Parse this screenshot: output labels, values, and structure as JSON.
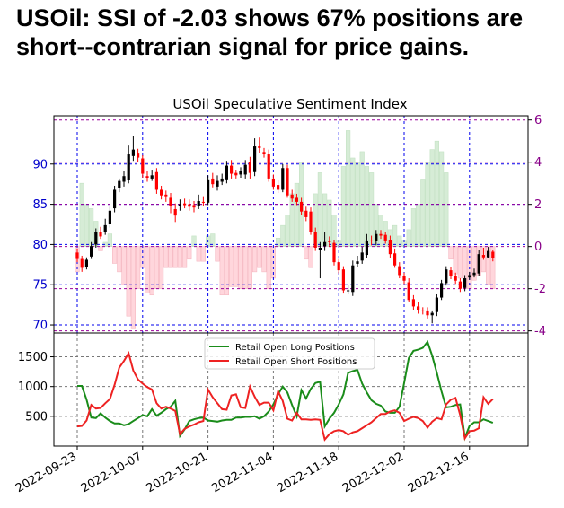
{
  "headline": "USOil: SSI of -2.03 shows 67% positions are short--contrarian signal for price gains.",
  "chart_data": {
    "type": "candlestick+bar+line",
    "title": "USOil Speculative Sentiment Index",
    "colors": {
      "up": "#000000",
      "down": "#ff0000",
      "ssi_pos": "#d6ecd6",
      "ssi_neg": "#ffd6dc",
      "long": "#1a8c1a",
      "short": "#ee2222",
      "price_axis": "#0000cc",
      "ssi_axis": "#880088"
    },
    "dates": [
      "2022-09-23",
      "2022-09-24",
      "2022-09-25",
      "2022-09-26",
      "2022-09-27",
      "2022-09-28",
      "2022-09-29",
      "2022-09-30",
      "2022-10-01",
      "2022-10-02",
      "2022-10-03",
      "2022-10-04",
      "2022-10-05",
      "2022-10-06",
      "2022-10-07",
      "2022-10-08",
      "2022-10-09",
      "2022-10-10",
      "2022-10-11",
      "2022-10-12",
      "2022-10-13",
      "2022-10-14",
      "2022-10-15",
      "2022-10-16",
      "2022-10-17",
      "2022-10-18",
      "2022-10-19",
      "2022-10-20",
      "2022-10-21",
      "2022-10-22",
      "2022-10-23",
      "2022-10-24",
      "2022-10-25",
      "2022-10-26",
      "2022-10-27",
      "2022-10-28",
      "2022-10-29",
      "2022-10-30",
      "2022-10-31",
      "2022-11-01",
      "2022-11-02",
      "2022-11-03",
      "2022-11-04",
      "2022-11-05",
      "2022-11-06",
      "2022-11-07",
      "2022-11-08",
      "2022-11-09",
      "2022-11-10",
      "2022-11-11",
      "2022-11-12",
      "2022-11-13",
      "2022-11-14",
      "2022-11-15",
      "2022-11-16",
      "2022-11-17",
      "2022-11-18",
      "2022-11-19",
      "2022-11-20",
      "2022-11-21",
      "2022-11-22",
      "2022-11-23",
      "2022-11-24",
      "2022-11-25",
      "2022-11-26",
      "2022-11-27",
      "2022-11-28",
      "2022-11-29",
      "2022-11-30",
      "2022-12-01",
      "2022-12-02",
      "2022-12-03",
      "2022-12-04",
      "2022-12-05",
      "2022-12-06",
      "2022-12-07",
      "2022-12-08",
      "2022-12-09",
      "2022-12-10",
      "2022-12-11",
      "2022-12-12",
      "2022-12-13",
      "2022-12-14",
      "2022-12-15",
      "2022-12-16",
      "2022-12-17",
      "2022-12-18",
      "2022-12-19",
      "2022-12-20",
      "2022-12-21",
      "2022-12-22",
      "2022-12-23",
      "2022-12-24",
      "2022-12-25",
      "2022-12-26",
      "2022-12-27"
    ],
    "candles": [
      [
        0,
        79,
        78.2,
        79.5,
        77.8
      ],
      [
        1,
        78.2,
        77.1,
        78.6,
        76.6
      ],
      [
        2,
        77.2,
        78.1,
        78.4,
        76.9
      ],
      [
        3,
        78.5,
        79.8,
        80.3,
        78.2
      ],
      [
        4,
        80,
        81.6,
        82,
        79.6
      ],
      [
        5,
        81.6,
        81,
        82.2,
        80.7
      ],
      [
        6,
        81.5,
        82.4,
        83.2,
        81.2
      ],
      [
        7,
        82.5,
        84.2,
        84.7,
        82.1
      ],
      [
        8,
        84.5,
        86.8,
        87.3,
        84
      ],
      [
        9,
        87,
        87.9,
        88.2,
        86.5
      ],
      [
        10,
        87.8,
        88.5,
        89.1,
        87.2
      ],
      [
        11,
        88,
        91.2,
        92.3,
        87.6
      ],
      [
        12,
        91,
        91.8,
        93.5,
        90.4
      ],
      [
        13,
        91.3,
        90.8,
        91.9,
        90.3
      ],
      [
        14,
        90.7,
        88.8,
        91.1,
        88.3
      ],
      [
        15,
        88.5,
        88.3,
        89.1,
        87.8
      ],
      [
        16,
        88.2,
        88.6,
        89.3,
        87.9
      ],
      [
        17,
        89,
        86.8,
        89.5,
        86.3
      ],
      [
        18,
        86.8,
        86.1,
        87.3,
        85.6
      ],
      [
        19,
        86.2,
        86,
        86.7,
        85.3
      ],
      [
        20,
        85.8,
        84.8,
        86.4,
        83.9
      ],
      [
        21,
        84.4,
        83.6,
        85.1,
        82.8
      ],
      [
        22,
        84.8,
        85,
        85.6,
        84.2
      ],
      [
        23,
        85.1,
        84.9,
        85.7,
        84.5
      ],
      [
        24,
        85,
        84.7,
        85.6,
        84.2
      ],
      [
        25,
        84.9,
        84.6,
        85.4,
        84
      ],
      [
        26,
        84.8,
        85.4,
        86.2,
        84.4
      ],
      [
        27,
        85.3,
        85.2,
        86,
        84.8
      ],
      [
        28,
        85.2,
        88.1,
        88.6,
        84.9
      ],
      [
        29,
        88.2,
        87.5,
        88.9,
        87.1
      ],
      [
        30,
        87.2,
        87.9,
        88.6,
        86.7
      ],
      [
        31,
        87.8,
        88.2,
        88.8,
        87.4
      ],
      [
        32,
        88.1,
        89.8,
        90.4,
        87.6
      ],
      [
        33,
        89.8,
        88.8,
        90.5,
        88.2
      ],
      [
        34,
        88.9,
        88.6,
        89.3,
        88.2
      ],
      [
        35,
        88.7,
        89.1,
        89.6,
        88.3
      ],
      [
        36,
        88.7,
        89.9,
        90.5,
        88.2
      ],
      [
        37,
        90.2,
        88.9,
        90.9,
        88.2
      ],
      [
        38,
        89,
        92.2,
        93.2,
        88.5
      ],
      [
        39,
        92.2,
        92,
        93.3,
        91.4
      ],
      [
        40,
        91.5,
        91.2,
        92,
        90.8
      ],
      [
        41,
        91.2,
        88.2,
        91.8,
        87.8
      ],
      [
        42,
        88.2,
        87.2,
        88.7,
        86.8
      ],
      [
        43,
        87.4,
        86.8,
        88,
        86.4
      ],
      [
        44,
        86.8,
        89.5,
        90,
        86.5
      ],
      [
        45,
        89.5,
        86.1,
        89.9,
        85.8
      ],
      [
        46,
        86.2,
        85.7,
        86.8,
        85.3
      ],
      [
        47,
        85.8,
        85.3,
        86.3,
        84.9
      ],
      [
        48,
        85.3,
        84.1,
        85.8,
        83.7
      ],
      [
        49,
        84.2,
        83.4,
        84.7,
        82.9
      ],
      [
        50,
        84.1,
        81.6,
        84.6,
        81.2
      ],
      [
        51,
        81.6,
        79.6,
        82.1,
        79.2
      ],
      [
        52,
        79.3,
        79.6,
        80.3,
        75.8
      ],
      [
        53,
        79.8,
        80.3,
        81.6,
        79.2
      ],
      [
        54,
        80.4,
        80.3,
        81,
        79.7
      ],
      [
        55,
        80.2,
        77.8,
        80.6,
        77.4
      ],
      [
        56,
        77.8,
        76.8,
        78.2,
        76.4
      ],
      [
        57,
        76.9,
        74.3,
        77.3,
        73.9
      ],
      [
        58,
        74.2,
        74.3,
        74.9,
        73.8
      ],
      [
        59,
        74.1,
        77.4,
        78,
        73.6
      ],
      [
        60,
        77.6,
        77.9,
        78.6,
        77.2
      ],
      [
        61,
        78,
        79,
        79.7,
        77.6
      ],
      [
        62,
        78.7,
        80.5,
        81.3,
        78.3
      ],
      [
        63,
        80.5,
        80.4,
        81.1,
        79.9
      ],
      [
        64,
        80.4,
        81.3,
        81.8,
        79.9
      ],
      [
        65,
        81.3,
        81.1,
        81.8,
        80.7
      ],
      [
        66,
        81.2,
        80.5,
        81.6,
        80.1
      ],
      [
        67,
        80.6,
        78.8,
        81.1,
        78.3
      ],
      [
        68,
        78.9,
        77.4,
        79.5,
        77.1
      ],
      [
        69,
        77.3,
        76.2,
        77.8,
        75.8
      ],
      [
        70,
        76.1,
        75.5,
        76.5,
        75.1
      ],
      [
        71,
        75.3,
        73.1,
        75.8,
        72.8
      ],
      [
        72,
        73.2,
        72.3,
        73.7,
        71.9
      ],
      [
        73,
        72.3,
        71.9,
        72.8,
        71.4
      ],
      [
        74,
        71.8,
        71.7,
        72.2,
        71.3
      ],
      [
        75,
        71.8,
        71.2,
        72.2,
        70.8
      ],
      [
        76,
        71.2,
        71.5,
        71.8,
        70.2
      ],
      [
        77,
        71.6,
        73.4,
        73.8,
        71.1
      ],
      [
        78,
        73.4,
        75.2,
        75.6,
        73.1
      ],
      [
        79,
        75.2,
        76.9,
        77.3,
        74.9
      ],
      [
        80,
        76.8,
        76.1,
        77.2,
        75.7
      ],
      [
        81,
        76.1,
        75.5,
        76.5,
        75.1
      ],
      [
        82,
        75.4,
        74.5,
        75.8,
        74.1
      ],
      [
        83,
        74.6,
        75.8,
        76.2,
        74.2
      ],
      [
        84,
        75.9,
        76.2,
        76.6,
        75.6
      ],
      [
        85,
        76.2,
        76.5,
        77,
        75.9
      ],
      [
        86,
        76.4,
        78.8,
        79.3,
        76.1
      ],
      [
        87,
        78.7,
        78.4,
        79.6,
        78.1
      ],
      [
        88,
        78.4,
        79.2,
        79.7,
        78.3
      ],
      [
        89,
        79.1,
        78.3,
        79.3,
        77.9
      ]
    ],
    "ssi": [
      -1.2,
      3.0,
      2.0,
      1.8,
      1.2,
      -0.2,
      0.2,
      0.6,
      -0.8,
      -1.2,
      -1.8,
      -3.3,
      -3.9,
      -2.0,
      -1.0,
      -2.2,
      -2.3,
      -2.0,
      -2.0,
      -1.0,
      -1.0,
      -1.0,
      -1.0,
      -1.0,
      -0.6,
      0.5,
      -0.7,
      -0.7,
      0.5,
      0.6,
      -0.7,
      -2.3,
      -2.3,
      -1.9,
      -1.9,
      -2.0,
      -2.0,
      -2.0,
      -1.2,
      -1.0,
      -1.2,
      -2.0,
      -1.5,
      0.4,
      1.0,
      1.5,
      2.5,
      3.0,
      4.0,
      -0.6,
      -1.0,
      2.5,
      3.5,
      2.5,
      2.2,
      1.5,
      0.3,
      3.8,
      5.5,
      4.2,
      4.0,
      4.5,
      3.8,
      3.5,
      2.0,
      1.5,
      1.2,
      0.8,
      1.0,
      0.5,
      0.3,
      0.8,
      1.8,
      2.0,
      3.2,
      4.0,
      4.6,
      5.0,
      4.5,
      3.5,
      -0.6,
      -1.3,
      -1.5,
      -2.0,
      -2.0,
      -1.6,
      -1.4,
      -1.2,
      -1.8,
      -2.0
    ],
    "long": [
      1010,
      1010,
      780,
      480,
      470,
      550,
      480,
      420,
      380,
      380,
      350,
      370,
      420,
      470,
      520,
      500,
      620,
      510,
      560,
      620,
      660,
      760,
      170,
      280,
      420,
      450,
      470,
      480,
      430,
      420,
      410,
      430,
      440,
      440,
      480,
      480,
      490,
      490,
      500,
      460,
      500,
      580,
      700,
      870,
      1000,
      900,
      690,
      500,
      940,
      800,
      960,
      1060,
      1080,
      330,
      460,
      560,
      700,
      870,
      1230,
      1260,
      1280,
      1050,
      900,
      770,
      710,
      680,
      580,
      560,
      560,
      660,
      1060,
      1480,
      1600,
      1620,
      1650,
      1750,
      1520,
      1230,
      920,
      650,
      660,
      690,
      700,
      140,
      340,
      400,
      400,
      450,
      420,
      390
    ],
    "short": [
      330,
      340,
      430,
      690,
      630,
      640,
      720,
      790,
      1030,
      1320,
      1430,
      1560,
      1270,
      1120,
      1050,
      990,
      950,
      720,
      630,
      660,
      630,
      590,
      200,
      290,
      330,
      360,
      400,
      420,
      950,
      820,
      720,
      620,
      610,
      850,
      870,
      650,
      640,
      1000,
      830,
      690,
      730,
      730,
      600,
      920,
      760,
      460,
      430,
      560,
      450,
      450,
      440,
      450,
      440,
      110,
      200,
      250,
      270,
      250,
      190,
      230,
      250,
      300,
      350,
      400,
      470,
      540,
      540,
      580,
      600,
      560,
      420,
      460,
      490,
      470,
      420,
      310,
      410,
      470,
      450,
      700,
      780,
      810,
      520,
      130,
      250,
      260,
      300,
      820,
      710,
      790
    ],
    "price_axis": {
      "min": 69,
      "max": 96,
      "ticks": [
        "70",
        "75",
        "80",
        "85",
        "90"
      ]
    },
    "ssi_axis": {
      "min": -4.1,
      "max": 6.2,
      "ticks": [
        "-4",
        "-2",
        "0",
        "2",
        "4",
        "6"
      ]
    },
    "pos_axis": {
      "min": 0,
      "max": 1900,
      "ticks": [
        "500",
        "1000",
        "1500"
      ]
    },
    "x_ticks": [
      "2022-09-23",
      "2022-10-07",
      "2022-10-21",
      "2022-11-04",
      "2022-11-18",
      "2022-12-02",
      "2022-12-16"
    ],
    "legend": {
      "long": "Retail Open Long Positions",
      "short": "Retail Open Short Positions"
    }
  }
}
